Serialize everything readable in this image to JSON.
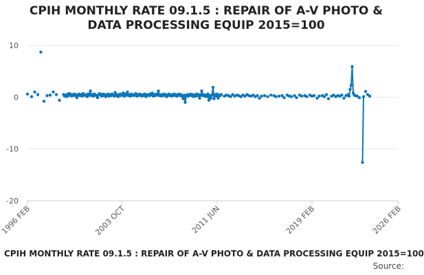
{
  "chart_data": {
    "type": "line",
    "title": "CPIH MONTHLY RATE 09.1.5 : REPAIR OF A-V PHOTO & DATA PROCESSING EQUIP 2015=100",
    "title_lines": [
      "CPIH MONTHLY RATE 09.1.5 : REPAIR OF A-V PHOTO &",
      "DATA PROCESSING EQUIP 2015=100"
    ],
    "xlabel": "",
    "ylabel": "",
    "ylim": [
      -20,
      10
    ],
    "y_ticks": [
      10,
      0,
      -10,
      -20
    ],
    "x_range": [
      "1996-02",
      "2026-02"
    ],
    "x_ticks": [
      {
        "label": "1996 FEB",
        "date": "1996-02"
      },
      {
        "label": "2003 OCT",
        "date": "2003-10"
      },
      {
        "label": "2011 JUN",
        "date": "2011-06"
      },
      {
        "label": "2019 FEB",
        "date": "2019-02"
      },
      {
        "label": "2026 FEB",
        "date": "2026-02"
      }
    ],
    "grid": "horizontal",
    "legend": "none",
    "color": "#0d77b8",
    "series": [
      {
        "points": [
          [
            "1996-02",
            0.6
          ],
          [
            "1996-06",
            0.1
          ],
          [
            "1996-09",
            1.0
          ],
          [
            "1996-12",
            0.5
          ],
          [
            "1997-03",
            8.7
          ],
          [
            "1997-06",
            -0.8
          ],
          [
            "1997-09",
            0.3
          ],
          [
            "1997-12",
            0.4
          ],
          [
            "1998-03",
            1.0
          ],
          [
            "1998-06",
            0.5
          ],
          [
            "1998-09",
            -0.6
          ],
          [
            "1999-01",
            0.5
          ],
          [
            "1999-02",
            0.2
          ],
          [
            "1999-03",
            0.4
          ],
          [
            "1999-04",
            0.1
          ],
          [
            "1999-05",
            0.6
          ],
          [
            "1999-06",
            0.3
          ],
          [
            "1999-07",
            0.7
          ],
          [
            "1999-08",
            0.5
          ],
          [
            "1999-09",
            0.2
          ],
          [
            "1999-10",
            0.4
          ],
          [
            "1999-11",
            0.6
          ],
          [
            "1999-12",
            0.3
          ],
          [
            "2000-01",
            0.5
          ],
          [
            "2000-02",
            -0.1
          ],
          [
            "2000-03",
            0.4
          ],
          [
            "2000-04",
            0.6
          ],
          [
            "2000-05",
            0.3
          ],
          [
            "2000-06",
            0.5
          ],
          [
            "2000-07",
            0.2
          ],
          [
            "2000-08",
            0.7
          ],
          [
            "2000-09",
            0.4
          ],
          [
            "2000-10",
            0.3
          ],
          [
            "2000-11",
            0.5
          ],
          [
            "2000-12",
            0.1
          ],
          [
            "2001-01",
            0.6
          ],
          [
            "2001-02",
            0.4
          ],
          [
            "2001-03",
            1.2
          ],
          [
            "2001-04",
            0.3
          ],
          [
            "2001-05",
            0.5
          ],
          [
            "2001-06",
            0.2
          ],
          [
            "2001-07",
            0.6
          ],
          [
            "2001-08",
            0.4
          ],
          [
            "2001-09",
            0.3
          ],
          [
            "2001-10",
            -0.1
          ],
          [
            "2001-11",
            0.5
          ],
          [
            "2001-12",
            0.7
          ],
          [
            "2002-01",
            0.4
          ],
          [
            "2002-02",
            0.2
          ],
          [
            "2002-03",
            0.6
          ],
          [
            "2002-04",
            0.3
          ],
          [
            "2002-05",
            0.5
          ],
          [
            "2002-06",
            0.1
          ],
          [
            "2002-07",
            0.4
          ],
          [
            "2002-08",
            0.6
          ],
          [
            "2002-09",
            0.2
          ],
          [
            "2002-10",
            0.5
          ],
          [
            "2002-11",
            0.3
          ],
          [
            "2002-12",
            0.6
          ],
          [
            "2003-01",
            0.4
          ],
          [
            "2003-02",
            0.2
          ],
          [
            "2003-03",
            0.9
          ],
          [
            "2003-04",
            0.3
          ],
          [
            "2003-05",
            0.5
          ],
          [
            "2003-06",
            0.1
          ],
          [
            "2003-07",
            0.4
          ],
          [
            "2003-08",
            0.6
          ],
          [
            "2003-09",
            0.3
          ],
          [
            "2003-10",
            0.5
          ],
          [
            "2003-11",
            0.8
          ],
          [
            "2003-12",
            0.2
          ],
          [
            "2004-01",
            0.6
          ],
          [
            "2004-02",
            0.4
          ],
          [
            "2004-03",
            1.0
          ],
          [
            "2004-04",
            0.3
          ],
          [
            "2004-05",
            0.5
          ],
          [
            "2004-06",
            0.2
          ],
          [
            "2004-07",
            0.6
          ],
          [
            "2004-08",
            0.4
          ],
          [
            "2004-09",
            0.3
          ],
          [
            "2004-10",
            0.5
          ],
          [
            "2004-11",
            0.7
          ],
          [
            "2004-12",
            0.2
          ],
          [
            "2005-01",
            0.5
          ],
          [
            "2005-02",
            0.3
          ],
          [
            "2005-03",
            0.6
          ],
          [
            "2005-04",
            0.4
          ],
          [
            "2005-05",
            0.2
          ],
          [
            "2005-06",
            0.5
          ],
          [
            "2005-07",
            0.3
          ],
          [
            "2005-08",
            0.6
          ],
          [
            "2005-09",
            0.1
          ],
          [
            "2005-10",
            0.4
          ],
          [
            "2005-11",
            0.5
          ],
          [
            "2005-12",
            0.3
          ],
          [
            "2006-01",
            0.6
          ],
          [
            "2006-02",
            0.4
          ],
          [
            "2006-03",
            0.8
          ],
          [
            "2006-04",
            0.2
          ],
          [
            "2006-05",
            0.5
          ],
          [
            "2006-06",
            0.3
          ],
          [
            "2006-07",
            0.6
          ],
          [
            "2006-08",
            0.4
          ],
          [
            "2006-09",
            1.2
          ],
          [
            "2006-10",
            0.3
          ],
          [
            "2006-11",
            0.5
          ],
          [
            "2006-12",
            0.2
          ],
          [
            "2007-01",
            0.4
          ],
          [
            "2007-02",
            0.6
          ],
          [
            "2007-03",
            0.3
          ],
          [
            "2007-04",
            0.5
          ],
          [
            "2007-05",
            0.1
          ],
          [
            "2007-06",
            0.4
          ],
          [
            "2007-07",
            0.6
          ],
          [
            "2007-08",
            0.3
          ],
          [
            "2007-09",
            0.5
          ],
          [
            "2007-10",
            0.2
          ],
          [
            "2007-11",
            0.4
          ],
          [
            "2007-12",
            0.6
          ],
          [
            "2008-01",
            0.3
          ],
          [
            "2008-02",
            0.5
          ],
          [
            "2008-03",
            0.2
          ],
          [
            "2008-04",
            0.4
          ],
          [
            "2008-05",
            0.6
          ],
          [
            "2008-06",
            0.3
          ],
          [
            "2008-07",
            0.5
          ],
          [
            "2008-08",
            0.2
          ],
          [
            "2008-09",
            -0.3
          ],
          [
            "2008-10",
            0.4
          ],
          [
            "2008-11",
            -1.0
          ],
          [
            "2008-12",
            0.3
          ],
          [
            "2009-01",
            0.5
          ],
          [
            "2009-02",
            0.2
          ],
          [
            "2009-03",
            0.4
          ],
          [
            "2009-04",
            0.6
          ],
          [
            "2009-05",
            0.3
          ],
          [
            "2009-06",
            0.5
          ],
          [
            "2009-07",
            0.1
          ],
          [
            "2009-08",
            0.4
          ],
          [
            "2009-09",
            0.2
          ],
          [
            "2009-10",
            0.6
          ],
          [
            "2009-11",
            0.3
          ],
          [
            "2009-12",
            0.5
          ],
          [
            "2010-01",
            -0.2
          ],
          [
            "2010-02",
            0.4
          ],
          [
            "2010-03",
            1.2
          ],
          [
            "2010-04",
            0.3
          ],
          [
            "2010-05",
            0.5
          ],
          [
            "2010-06",
            0.2
          ],
          [
            "2010-07",
            0.4
          ],
          [
            "2010-08",
            0.1
          ],
          [
            "2010-09",
            0.6
          ],
          [
            "2010-10",
            -0.6
          ],
          [
            "2010-11",
            0.3
          ],
          [
            "2010-12",
            -0.2
          ],
          [
            "2011-01",
            0.4
          ],
          [
            "2011-02",
            1.9
          ],
          [
            "2011-03",
            -0.3
          ],
          [
            "2011-04",
            0.5
          ],
          [
            "2011-05",
            0.2
          ],
          [
            "2011-06",
            0.6
          ],
          [
            "2011-07",
            -0.2
          ],
          [
            "2011-08",
            0.4
          ],
          [
            "2011-09",
            0.3
          ],
          [
            "2011-10",
            0.5
          ],
          [
            "2012-01",
            0.2
          ],
          [
            "2012-03",
            0.4
          ],
          [
            "2012-05",
            0.3
          ],
          [
            "2012-07",
            0.1
          ],
          [
            "2012-09",
            0.5
          ],
          [
            "2012-11",
            0.2
          ],
          [
            "2013-01",
            0.4
          ],
          [
            "2013-03",
            0.3
          ],
          [
            "2013-05",
            0.1
          ],
          [
            "2013-07",
            0.4
          ],
          [
            "2013-09",
            0.2
          ],
          [
            "2013-11",
            0.5
          ],
          [
            "2014-01",
            0.3
          ],
          [
            "2014-03",
            0.2
          ],
          [
            "2014-05",
            0.4
          ],
          [
            "2014-07",
            0.1
          ],
          [
            "2014-09",
            0.3
          ],
          [
            "2014-11",
            -0.2
          ],
          [
            "2015-01",
            0.2
          ],
          [
            "2015-04",
            0.3
          ],
          [
            "2015-07",
            0.1
          ],
          [
            "2015-10",
            0.4
          ],
          [
            "2016-01",
            0.3
          ],
          [
            "2016-03",
            0.1
          ],
          [
            "2016-06",
            0.2
          ],
          [
            "2016-09",
            0.3
          ],
          [
            "2016-11",
            -0.1
          ],
          [
            "2017-02",
            0.4
          ],
          [
            "2017-04",
            0.2
          ],
          [
            "2017-06",
            0.1
          ],
          [
            "2017-09",
            0.3
          ],
          [
            "2017-11",
            -0.1
          ],
          [
            "2018-02",
            0.4
          ],
          [
            "2018-04",
            0.2
          ],
          [
            "2018-07",
            0.3
          ],
          [
            "2018-09",
            0.1
          ],
          [
            "2018-12",
            0.4
          ],
          [
            "2019-02",
            0.2
          ],
          [
            "2019-04",
            0.3
          ],
          [
            "2019-07",
            -0.2
          ],
          [
            "2019-09",
            0.2
          ],
          [
            "2019-12",
            0.3
          ],
          [
            "2020-02",
            0.1
          ],
          [
            "2020-04",
            0.5
          ],
          [
            "2020-06",
            -0.3
          ],
          [
            "2020-09",
            0.2
          ],
          [
            "2020-11",
            0.4
          ],
          [
            "2021-01",
            0.1
          ],
          [
            "2021-03",
            0.3
          ],
          [
            "2021-05",
            0.2
          ],
          [
            "2021-07",
            0.4
          ],
          [
            "2021-09",
            -0.2
          ],
          [
            "2021-11",
            0.3
          ],
          [
            "2022-01",
            0.5
          ],
          [
            "2022-02",
            0.2
          ],
          [
            "2022-03",
            1.5
          ],
          [
            "2022-04",
            2.3
          ],
          [
            "2022-05",
            5.9
          ],
          [
            "2022-06",
            0.8
          ],
          [
            "2022-07",
            0.4
          ],
          [
            "2022-08",
            0.3
          ],
          [
            "2022-10",
            0.2
          ],
          [
            "2022-12",
            -0.1
          ],
          [
            "2023-03",
            -12.6
          ],
          [
            "2023-04",
            0.1
          ],
          [
            "2023-06",
            1.1
          ],
          [
            "2023-08",
            0.5
          ],
          [
            "2023-10",
            0.2
          ]
        ]
      }
    ]
  },
  "footer": {
    "title": "CPIH MONTHLY RATE 09.1.5 : REPAIR OF A-V PHOTO & DATA PROCESSING EQUIP 2015=100",
    "source": "Source:"
  }
}
